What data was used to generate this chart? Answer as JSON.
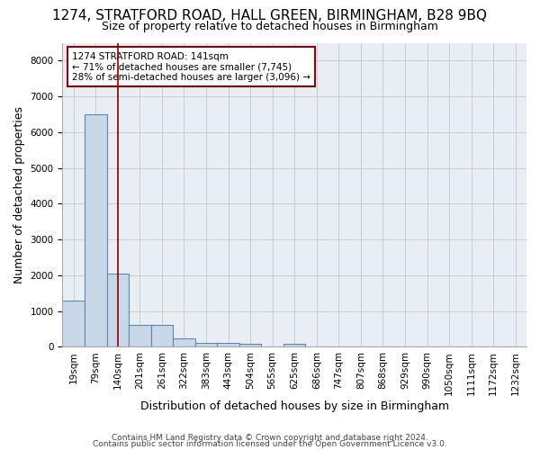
{
  "title": "1274, STRATFORD ROAD, HALL GREEN, BIRMINGHAM, B28 9BQ",
  "subtitle": "Size of property relative to detached houses in Birmingham",
  "xlabel": "Distribution of detached houses by size in Birmingham",
  "ylabel": "Number of detached properties",
  "footer1": "Contains HM Land Registry data © Crown copyright and database right 2024.",
  "footer2": "Contains public sector information licensed under the Open Government Licence v3.0.",
  "bin_labels": [
    "19sqm",
    "79sqm",
    "140sqm",
    "201sqm",
    "261sqm",
    "322sqm",
    "383sqm",
    "443sqm",
    "504sqm",
    "565sqm",
    "625sqm",
    "686sqm",
    "747sqm",
    "807sqm",
    "868sqm",
    "929sqm",
    "990sqm",
    "1050sqm",
    "1111sqm",
    "1172sqm",
    "1232sqm"
  ],
  "bar_heights": [
    1280,
    6500,
    2050,
    620,
    620,
    240,
    120,
    100,
    90,
    0,
    90,
    0,
    0,
    0,
    0,
    0,
    0,
    0,
    0,
    0,
    0
  ],
  "bar_color": "#c8d8e8",
  "bar_edge_color": "#5a8ab0",
  "bar_edge_width": 0.8,
  "property_line_idx": 2,
  "property_line_color": "#8b0000",
  "annotation_text": "1274 STRATFORD ROAD: 141sqm\n← 71% of detached houses are smaller (7,745)\n28% of semi-detached houses are larger (3,096) →",
  "annotation_box_color": "#ffffff",
  "annotation_box_edge_color": "#8b0000",
  "annotation_fontsize": 7.5,
  "ylim": [
    0,
    8500
  ],
  "yticks": [
    0,
    1000,
    2000,
    3000,
    4000,
    5000,
    6000,
    7000,
    8000
  ],
  "grid_color": "#cccccc",
  "bg_color": "#e8eef4",
  "title_fontsize": 11,
  "subtitle_fontsize": 9,
  "axis_label_fontsize": 9,
  "tick_fontsize": 7.5,
  "footer_fontsize": 6.5
}
